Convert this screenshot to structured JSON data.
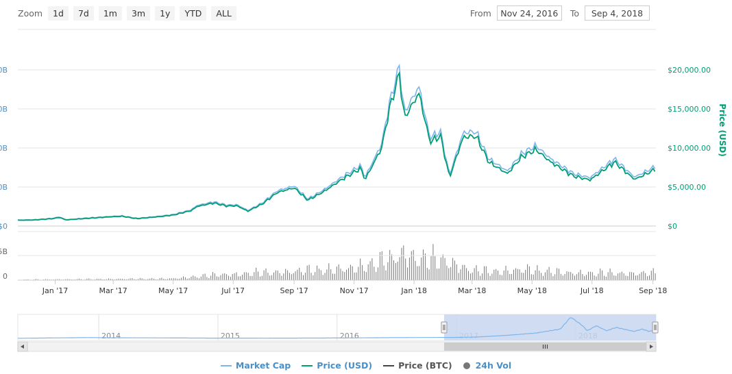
{
  "zoom": {
    "label": "Zoom",
    "buttons": [
      "1d",
      "7d",
      "1m",
      "3m",
      "1y",
      "YTD",
      "ALL"
    ]
  },
  "range": {
    "from_label": "From",
    "from_value": "Nov 24, 2016",
    "to_label": "To",
    "to_value": "Sep 4, 2018"
  },
  "colors": {
    "market_cap": "#7cb5ec",
    "price_usd": "#009e73",
    "price_btc": "#434348",
    "volume": "#777777",
    "navigator_mask": "#c8d6f0"
  },
  "chart_data": {
    "type": "line",
    "x_start": "2016-11-24",
    "x_end": "2018-09-04",
    "x_ticks": [
      "Jan '17",
      "Mar '17",
      "May '17",
      "Jul '17",
      "Sep '17",
      "Nov '17",
      "Jan '18",
      "Mar '18",
      "May '18",
      "Jul '18",
      "Sep '18"
    ],
    "y_right_label": "Price (USD)",
    "y_right_ticks": [
      "$0",
      "$5,000.00",
      "$10,000.00",
      "$15,000.00",
      "$20,000.00"
    ],
    "y_left_ticks": [
      "$0",
      "0B",
      "0B",
      "0B",
      "0B"
    ],
    "y_right_range": [
      0,
      20000
    ],
    "volume_ticks": [
      "0",
      "5B"
    ],
    "price_usd": [
      [
        "2016-11-24",
        740
      ],
      [
        "2016-12-10",
        770
      ],
      [
        "2016-12-31",
        960
      ],
      [
        "2017-01-05",
        1120
      ],
      [
        "2017-01-12",
        780
      ],
      [
        "2017-02-01",
        970
      ],
      [
        "2017-02-28",
        1190
      ],
      [
        "2017-03-10",
        1250
      ],
      [
        "2017-03-25",
        940
      ],
      [
        "2017-04-15",
        1180
      ],
      [
        "2017-05-01",
        1400
      ],
      [
        "2017-05-20",
        2000
      ],
      [
        "2017-05-25",
        2500
      ],
      [
        "2017-06-11",
        2950
      ],
      [
        "2017-06-25",
        2550
      ],
      [
        "2017-07-05",
        2600
      ],
      [
        "2017-07-16",
        1900
      ],
      [
        "2017-07-31",
        2850
      ],
      [
        "2017-08-15",
        4300
      ],
      [
        "2017-09-01",
        4900
      ],
      [
        "2017-09-15",
        3300
      ],
      [
        "2017-10-01",
        4400
      ],
      [
        "2017-10-20",
        6000
      ],
      [
        "2017-11-08",
        7400
      ],
      [
        "2017-11-12",
        5900
      ],
      [
        "2017-11-29",
        10000
      ],
      [
        "2017-12-07",
        15000
      ],
      [
        "2017-12-17",
        19500
      ],
      [
        "2017-12-22",
        13800
      ],
      [
        "2018-01-06",
        17000
      ],
      [
        "2018-01-17",
        10800
      ],
      [
        "2018-01-28",
        11500
      ],
      [
        "2018-02-06",
        6200
      ],
      [
        "2018-02-20",
        11400
      ],
      [
        "2018-03-05",
        11500
      ],
      [
        "2018-03-18",
        8200
      ],
      [
        "2018-04-06",
        6700
      ],
      [
        "2018-04-20",
        8800
      ],
      [
        "2018-05-05",
        9800
      ],
      [
        "2018-05-20",
        8200
      ],
      [
        "2018-06-12",
        6400
      ],
      [
        "2018-06-29",
        5900
      ],
      [
        "2018-07-24",
        8200
      ],
      [
        "2018-08-10",
        6300
      ],
      [
        "2018-08-14",
        6000
      ],
      [
        "2018-09-04",
        7300
      ]
    ],
    "market_cap_scale": 1.05,
    "volume_range": [
      0,
      6.5
    ],
    "volume": [
      [
        "2016-11-24",
        0.1
      ],
      [
        "2017-04-30",
        0.3
      ],
      [
        "2017-06-15",
        1.0
      ],
      [
        "2017-08-15",
        1.5
      ],
      [
        "2017-09-15",
        1.8
      ],
      [
        "2017-10-30",
        2.2
      ],
      [
        "2017-11-30",
        3.5
      ],
      [
        "2017-12-10",
        4.0
      ],
      [
        "2017-12-20",
        5.2
      ],
      [
        "2018-01-05",
        4.0
      ],
      [
        "2018-02-06",
        3.5
      ],
      [
        "2018-02-28",
        1.8
      ],
      [
        "2018-03-25",
        1.6
      ],
      [
        "2018-04-25",
        2.0
      ],
      [
        "2018-05-30",
        1.4
      ],
      [
        "2018-07-15",
        1.3
      ],
      [
        "2018-09-04",
        1.3
      ]
    ],
    "navigator": {
      "year_labels": [
        "2014",
        "2015",
        "2016",
        "2017",
        "2018"
      ],
      "x_start": "2013-04-28",
      "x_end": "2018-09-04",
      "selection": [
        "2016-11-24",
        "2018-09-04"
      ],
      "market_cap_bn": [
        [
          "2013-04-28",
          1.5
        ],
        [
          "2013-11-30",
          12
        ],
        [
          "2014-01-15",
          10
        ],
        [
          "2014-06-01",
          8
        ],
        [
          "2014-12-31",
          4
        ],
        [
          "2015-06-01",
          3.5
        ],
        [
          "2015-12-31",
          6
        ],
        [
          "2016-06-15",
          11
        ],
        [
          "2016-12-31",
          15
        ],
        [
          "2017-03-01",
          20
        ],
        [
          "2017-06-01",
          45
        ],
        [
          "2017-09-01",
          80
        ],
        [
          "2017-11-15",
          140
        ],
        [
          "2017-12-17",
          320
        ],
        [
          "2018-01-20",
          200
        ],
        [
          "2018-02-06",
          115
        ],
        [
          "2018-03-05",
          190
        ],
        [
          "2018-04-06",
          115
        ],
        [
          "2018-05-05",
          165
        ],
        [
          "2018-06-29",
          105
        ],
        [
          "2018-07-24",
          140
        ],
        [
          "2018-08-14",
          105
        ],
        [
          "2018-09-04",
          125
        ]
      ]
    },
    "legend": [
      {
        "name": "Market Cap",
        "symbol": "line",
        "color": "#7cb5ec"
      },
      {
        "name": "Price (USD)",
        "symbol": "line",
        "color": "#009e73"
      },
      {
        "name": "Price (BTC)",
        "symbol": "line",
        "color": "#434348"
      },
      {
        "name": "24h Vol",
        "symbol": "dot",
        "color": "#777777"
      }
    ]
  }
}
